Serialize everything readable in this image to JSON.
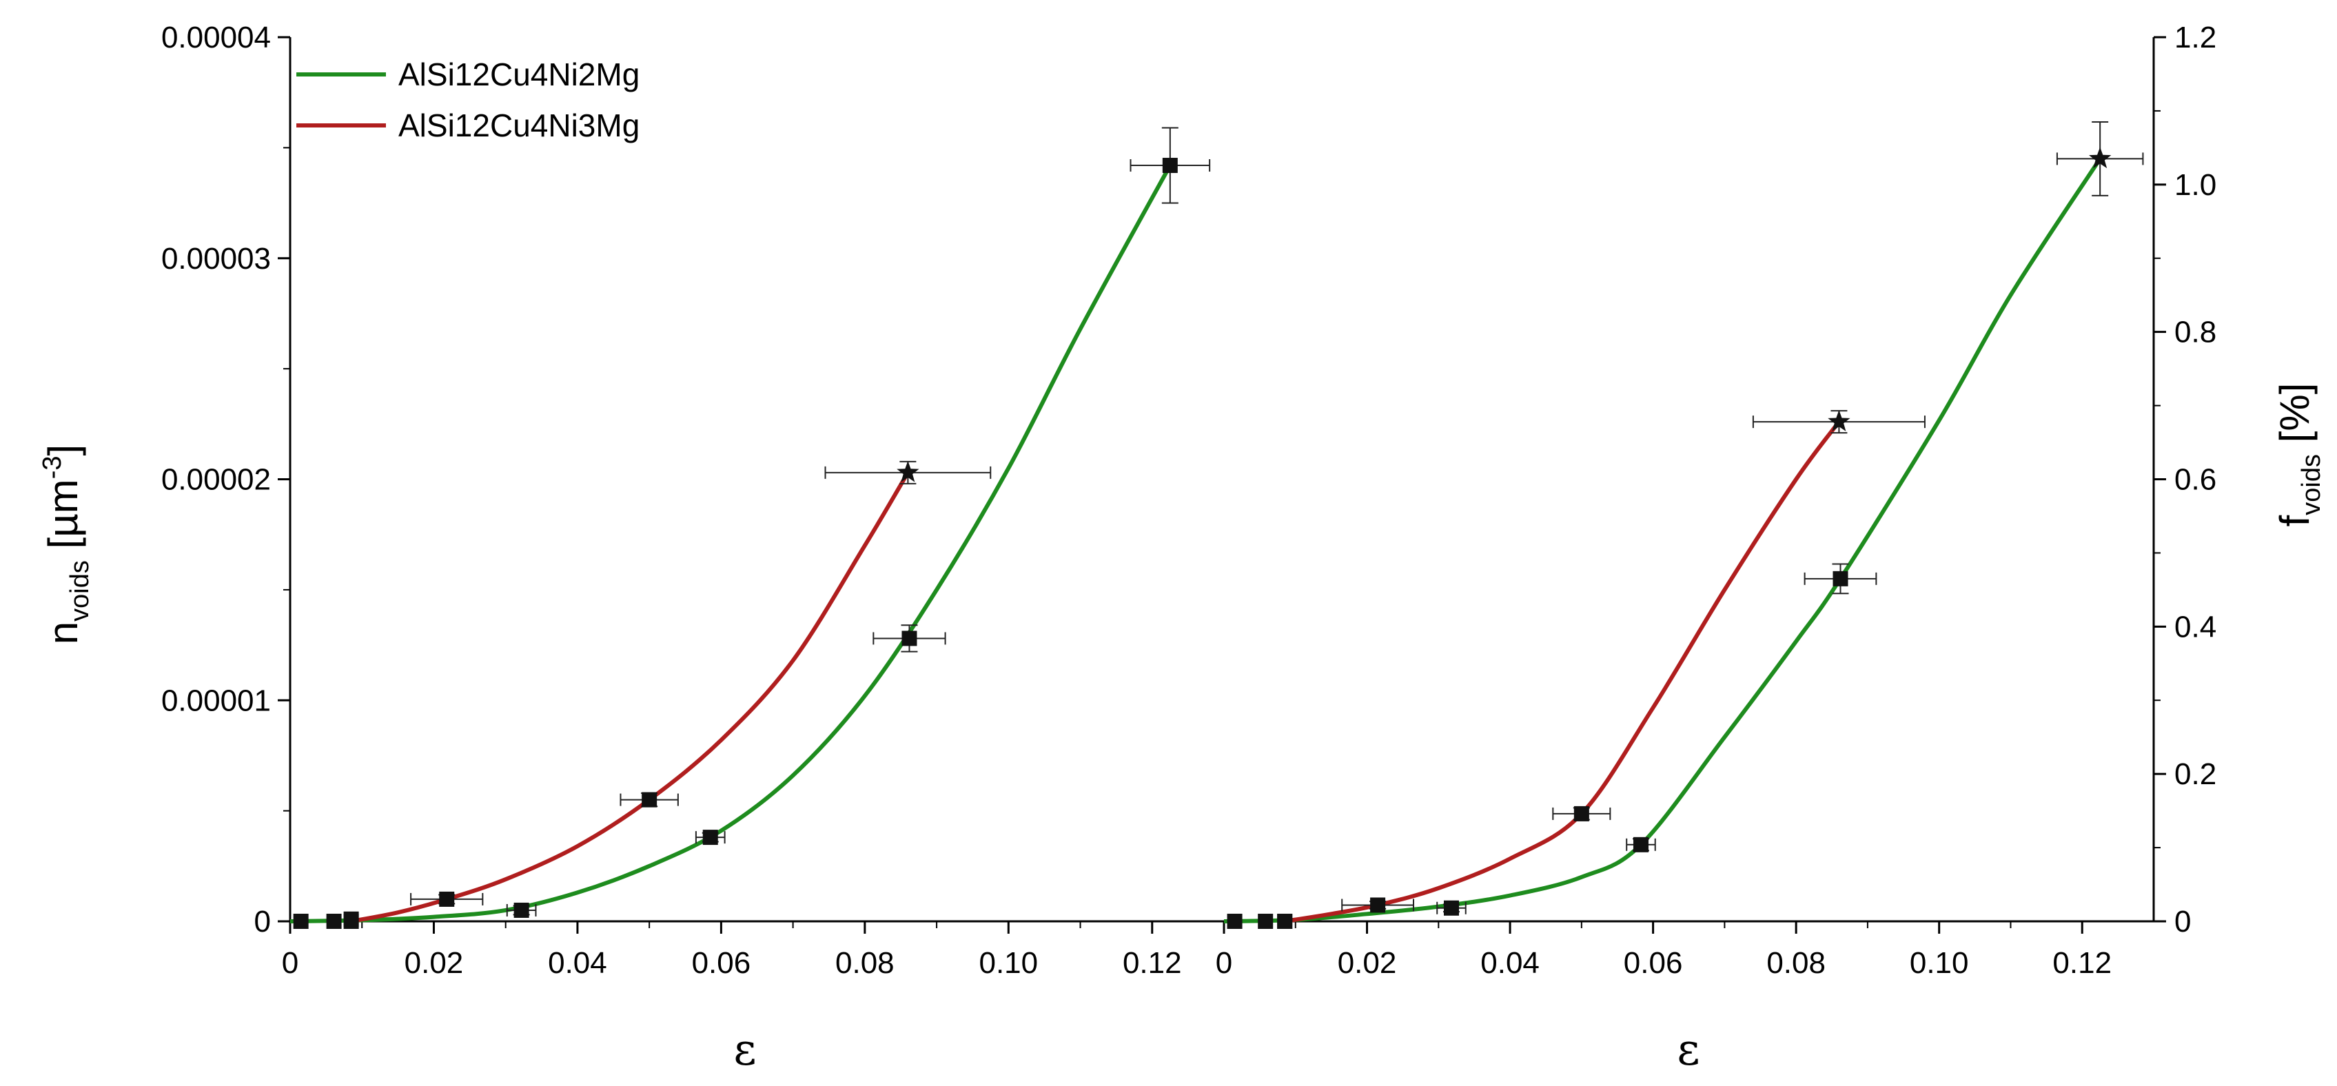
{
  "chart_data": [
    {
      "type": "line",
      "panel": "left",
      "xlabel": "ε",
      "ylabel_main": "n",
      "ylabel_sub": "voids",
      "ylabel_unit_open": " [µm",
      "ylabel_unit_sup": "-3",
      "ylabel_unit_close": "]",
      "xlim": [
        0,
        0.13
      ],
      "ylim": [
        0,
        4e-05
      ],
      "x_ticks": [
        0,
        0.02,
        0.04,
        0.06,
        0.08,
        0.1,
        0.12
      ],
      "x_tick_labels": [
        "0",
        "0.02",
        "0.04",
        "0.06",
        "0.08",
        "0.10",
        "0.12"
      ],
      "y_ticks": [
        0,
        1e-05,
        2e-05,
        3e-05,
        4e-05
      ],
      "y_tick_labels": [
        "0",
        "0.00001",
        "0.00002",
        "0.00003",
        "0.00004"
      ],
      "legend_position": "top-left",
      "series": [
        {
          "name": "AlSi12Cu4Ni2Mg",
          "color": "#1e8c1e",
          "marker": "square",
          "points": [
            {
              "x": 0.0015,
              "y": 0.0,
              "xerr": 0.0,
              "yerr": 0.0
            },
            {
              "x": 0.0061,
              "y": 0.0,
              "xerr": 0.0,
              "yerr": 0.0
            },
            {
              "x": 0.0085,
              "y": 1e-07,
              "xerr": 0.0,
              "yerr": 0.0
            },
            {
              "x": 0.0322,
              "y": 5e-07,
              "xerr": 0.002,
              "yerr": 2e-07
            },
            {
              "x": 0.0585,
              "y": 3.8e-06,
              "xerr": 0.002,
              "yerr": 2e-07
            },
            {
              "x": 0.0862,
              "y": 1.28e-05,
              "xerr": 0.005,
              "yerr": 6e-07
            },
            {
              "x": 0.1225,
              "y": 3.42e-05,
              "xerr": 0.0055,
              "yerr": 1.7e-06
            }
          ],
          "curve": [
            [
              0.0,
              0.0
            ],
            [
              0.01,
              5e-08
            ],
            [
              0.02,
              2e-07
            ],
            [
              0.03,
              5e-07
            ],
            [
              0.04,
              1.3e-06
            ],
            [
              0.05,
              2.5e-06
            ],
            [
              0.06,
              4.1e-06
            ],
            [
              0.07,
              6.6e-06
            ],
            [
              0.08,
              1.02e-05
            ],
            [
              0.09,
              1.5e-05
            ],
            [
              0.1,
              2.05e-05
            ],
            [
              0.11,
              2.68e-05
            ],
            [
              0.1225,
              3.42e-05
            ]
          ]
        },
        {
          "name": "AlSi12Cu4Ni3Mg",
          "color": "#b01e1e",
          "marker": "square",
          "end_marker": "star",
          "points": [
            {
              "x": 0.0085,
              "y": 0.0,
              "xerr": 0.0,
              "yerr": 0.0
            },
            {
              "x": 0.0218,
              "y": 1e-06,
              "xerr": 0.005,
              "yerr": 2e-07
            },
            {
              "x": 0.05,
              "y": 5.5e-06,
              "xerr": 0.004,
              "yerr": 3e-07
            },
            {
              "x": 0.086,
              "y": 2.03e-05,
              "xerr": 0.0115,
              "yerr": 5e-07
            }
          ],
          "curve": [
            [
              0.0085,
              0.0
            ],
            [
              0.015,
              4e-07
            ],
            [
              0.0218,
              1e-06
            ],
            [
              0.03,
              1.9e-06
            ],
            [
              0.04,
              3.4e-06
            ],
            [
              0.05,
              5.5e-06
            ],
            [
              0.06,
              8.2e-06
            ],
            [
              0.07,
              1.18e-05
            ],
            [
              0.08,
              1.7e-05
            ],
            [
              0.086,
              2.03e-05
            ]
          ]
        }
      ],
      "legend": [
        {
          "label": "AlSi12Cu4Ni2Mg",
          "color": "#1e8c1e"
        },
        {
          "label": "AlSi12Cu4Ni3Mg",
          "color": "#b01e1e"
        }
      ]
    },
    {
      "type": "line",
      "panel": "right",
      "xlabel": "ε",
      "ylabel_main": "f",
      "ylabel_sub": "voids",
      "ylabel_unit": " [%]",
      "xlim": [
        0,
        0.13
      ],
      "ylim": [
        0,
        1.2
      ],
      "x_ticks": [
        0,
        0.02,
        0.04,
        0.06,
        0.08,
        0.1,
        0.12
      ],
      "x_tick_labels": [
        "0",
        "0.02",
        "0.04",
        "0.06",
        "0.08",
        "0.10",
        "0.12"
      ],
      "y_ticks": [
        0,
        0.2,
        0.4,
        0.6,
        0.8,
        1.0,
        1.2
      ],
      "y_tick_labels": [
        "0",
        "0.2",
        "0.4",
        "0.6",
        "0.8",
        "1.0",
        "1.2"
      ],
      "series": [
        {
          "name": "AlSi12Cu4Ni2Mg",
          "color": "#1e8c1e",
          "marker": "square",
          "end_marker": "star",
          "points": [
            {
              "x": 0.0015,
              "y": 0.0,
              "xerr": 0.0,
              "yerr": 0.0
            },
            {
              "x": 0.0058,
              "y": 0.0,
              "xerr": 0.0,
              "yerr": 0.0
            },
            {
              "x": 0.0085,
              "y": 0.0,
              "xerr": 0.0,
              "yerr": 0.0
            },
            {
              "x": 0.0318,
              "y": 0.018,
              "xerr": 0.002,
              "yerr": 0.005
            },
            {
              "x": 0.0583,
              "y": 0.104,
              "xerr": 0.002,
              "yerr": 0.008
            },
            {
              "x": 0.0862,
              "y": 0.465,
              "xerr": 0.005,
              "yerr": 0.02
            },
            {
              "x": 0.1225,
              "y": 1.035,
              "xerr": 0.006,
              "yerr": 0.05
            }
          ],
          "curve": [
            [
              0.0,
              0.0
            ],
            [
              0.01,
              0.002
            ],
            [
              0.02,
              0.01
            ],
            [
              0.03,
              0.02
            ],
            [
              0.04,
              0.035
            ],
            [
              0.05,
              0.06
            ],
            [
              0.0583,
              0.104
            ],
            [
              0.07,
              0.25
            ],
            [
              0.08,
              0.38
            ],
            [
              0.0862,
              0.465
            ],
            [
              0.1,
              0.68
            ],
            [
              0.11,
              0.85
            ],
            [
              0.1225,
              1.035
            ]
          ]
        },
        {
          "name": "AlSi12Cu4Ni3Mg",
          "color": "#b01e1e",
          "marker": "square",
          "end_marker": "star",
          "points": [
            {
              "x": 0.0085,
              "y": 0.0,
              "xerr": 0.0,
              "yerr": 0.0
            },
            {
              "x": 0.0215,
              "y": 0.022,
              "xerr": 0.005,
              "yerr": 0.005
            },
            {
              "x": 0.05,
              "y": 0.146,
              "xerr": 0.004,
              "yerr": 0.008
            },
            {
              "x": 0.086,
              "y": 0.678,
              "xerr": 0.012,
              "yerr": 0.015
            }
          ],
          "curve": [
            [
              0.0085,
              0.0
            ],
            [
              0.015,
              0.01
            ],
            [
              0.0215,
              0.022
            ],
            [
              0.03,
              0.045
            ],
            [
              0.04,
              0.085
            ],
            [
              0.05,
              0.146
            ],
            [
              0.06,
              0.29
            ],
            [
              0.07,
              0.45
            ],
            [
              0.08,
              0.6
            ],
            [
              0.086,
              0.678
            ]
          ]
        }
      ]
    }
  ]
}
